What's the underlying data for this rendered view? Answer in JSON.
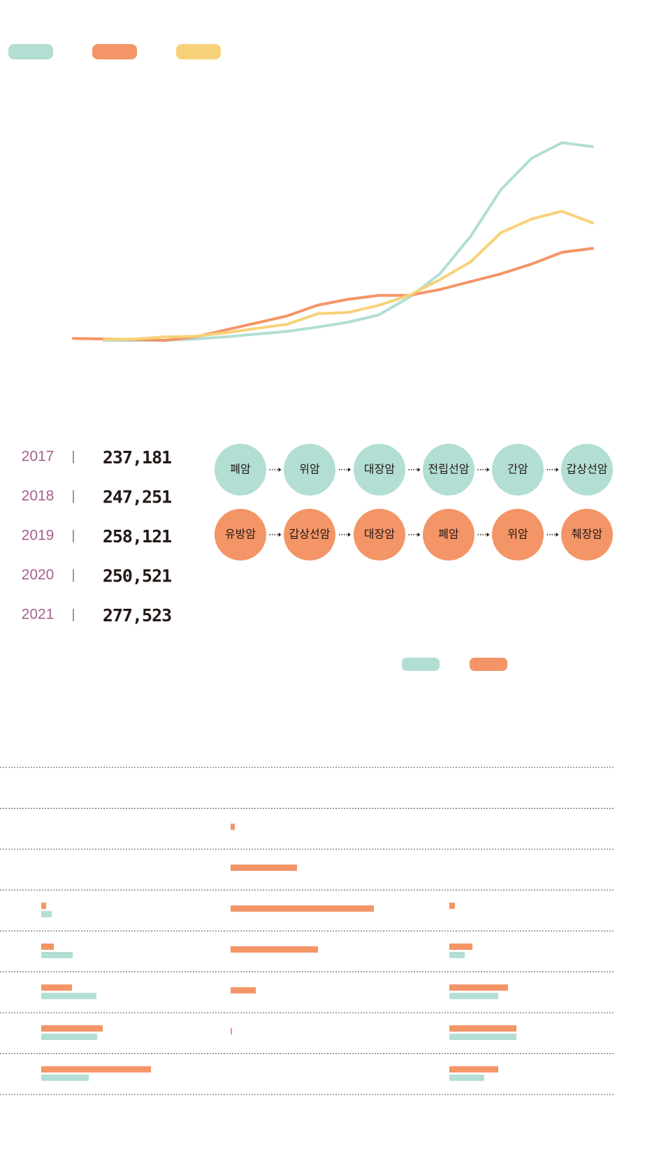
{
  "chart_data": [
    {
      "type": "line",
      "ylim": [
        0,
        110
      ],
      "series": [
        {
          "color": "#b2ded4",
          "values": [
            null,
            0,
            0,
            0,
            0.7,
            1.8,
            3.2,
            4.6,
            6.8,
            9.3,
            13,
            22,
            34,
            53,
            77,
            93,
            101,
            99
          ]
        },
        {
          "color": "#f39566",
          "values": [
            1,
            0.7,
            0.4,
            0,
            1.8,
            5.4,
            8.9,
            12.5,
            18,
            21,
            23,
            23,
            26,
            30,
            34,
            39,
            45,
            47
          ]
        },
        {
          "color": "#f8d27a",
          "values": [
            null,
            0.4,
            0.7,
            1.8,
            2.1,
            3.9,
            6.1,
            8.2,
            13.6,
            14.3,
            17.9,
            23,
            31,
            40,
            55,
            62,
            66,
            60
          ]
        }
      ]
    },
    {
      "type": "bar",
      "xlim": [
        0,
        270
      ],
      "groups": [
        {
          "series": [
            {
              "color": "#f39566",
              "values": [
                null,
                null,
                null,
                7,
                18,
                44,
                88,
                157
              ]
            },
            {
              "color": "#b2ded4",
              "values": [
                null,
                null,
                null,
                15,
                45,
                79,
                80,
                68
              ]
            }
          ]
        },
        {
          "series": [
            {
              "color": "#f39566",
              "values": [
                null,
                6,
                95,
                205,
                125,
                36,
                2,
                null
              ]
            }
          ]
        },
        {
          "series": [
            {
              "color": "#f39566",
              "values": [
                null,
                null,
                null,
                8,
                33,
                84,
                96,
                70
              ]
            },
            {
              "color": "#b2ded4",
              "values": [
                null,
                null,
                null,
                null,
                22,
                70,
                96,
                50
              ]
            }
          ]
        }
      ]
    }
  ],
  "yearly": [
    {
      "year": "2017",
      "count": "237,181"
    },
    {
      "year": "2018",
      "count": "247,251"
    },
    {
      "year": "2019",
      "count": "258,121"
    },
    {
      "year": "2020",
      "count": "250,521"
    },
    {
      "year": "2021",
      "count": "277,523"
    }
  ],
  "rankings": [
    {
      "color": "#b2ded4",
      "items": [
        "폐암",
        "위암",
        "대장암",
        "전립선암",
        "간암",
        "갑상선암"
      ]
    },
    {
      "color": "#f39566",
      "items": [
        "유방암",
        "갑상선암",
        "대장암",
        "폐암",
        "위암",
        "췌장암"
      ]
    }
  ]
}
